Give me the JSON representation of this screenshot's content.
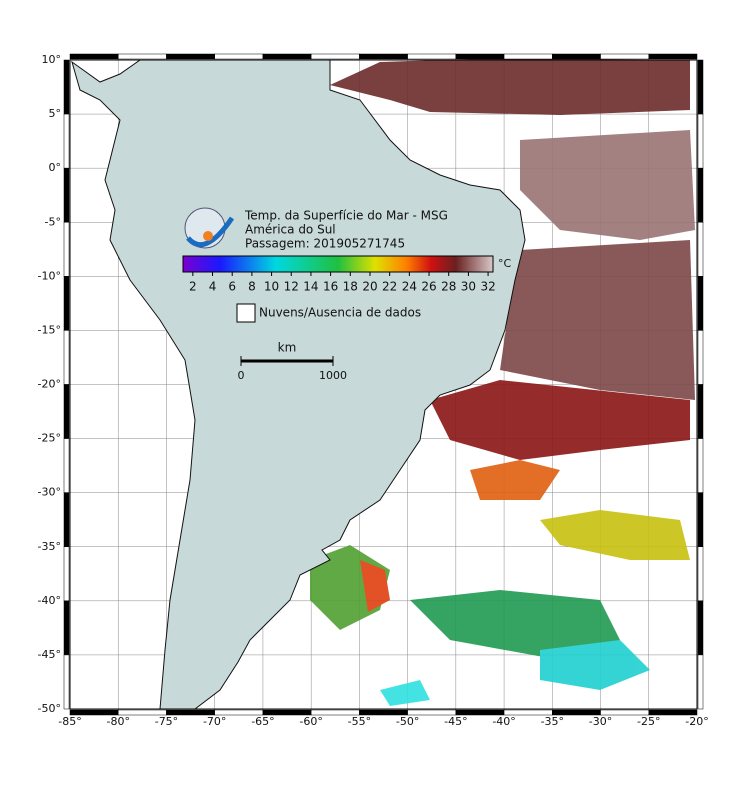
{
  "header": {
    "title": "Temp. da Superfície do Mar - MSG",
    "region": "América do Sul",
    "pass": "Passagem: 201905271745"
  },
  "colorbar": {
    "range": [
      1,
      32.5
    ],
    "ticks": [
      2,
      4,
      6,
      8,
      10,
      12,
      14,
      16,
      18,
      20,
      22,
      24,
      26,
      28,
      30,
      32
    ],
    "unit": "°C"
  },
  "legend": {
    "label": "Nuvens/Ausencia de dados"
  },
  "scale_bar": {
    "unit": "km",
    "ticks": [
      0,
      1000
    ]
  },
  "map": {
    "xlim": [
      -85,
      -20
    ],
    "ylim": [
      -50,
      10
    ],
    "xticks": [
      {
        "value": -85,
        "label": "-85°"
      },
      {
        "value": -80,
        "label": "-80°"
      },
      {
        "value": -75,
        "label": "-75°"
      },
      {
        "value": -70,
        "label": "-70°"
      },
      {
        "value": -65,
        "label": "-65°"
      },
      {
        "value": -60,
        "label": "-60°"
      },
      {
        "value": -55,
        "label": "-55°"
      },
      {
        "value": -50,
        "label": "-50°"
      },
      {
        "value": -45,
        "label": "-45°"
      },
      {
        "value": -40,
        "label": "-40°"
      },
      {
        "value": -35,
        "label": "-35°"
      },
      {
        "value": -30,
        "label": "-30°"
      },
      {
        "value": -25,
        "label": "-25°"
      },
      {
        "value": -20,
        "label": "-20°"
      }
    ],
    "yticks": [
      {
        "value": 10,
        "label": "10°"
      },
      {
        "value": 5,
        "label": "5°"
      },
      {
        "value": 0,
        "label": "0°"
      },
      {
        "value": -5,
        "label": "-5°"
      },
      {
        "value": -10,
        "label": "-10°"
      },
      {
        "value": -15,
        "label": "-15°"
      },
      {
        "value": -20,
        "label": "-20°"
      },
      {
        "value": -25,
        "label": "-25°"
      },
      {
        "value": -30,
        "label": "-30°"
      },
      {
        "value": -35,
        "label": "-35°"
      },
      {
        "value": -40,
        "label": "-40°"
      },
      {
        "value": -45,
        "label": "-45°"
      },
      {
        "value": -50,
        "label": "-50°"
      }
    ]
  }
}
